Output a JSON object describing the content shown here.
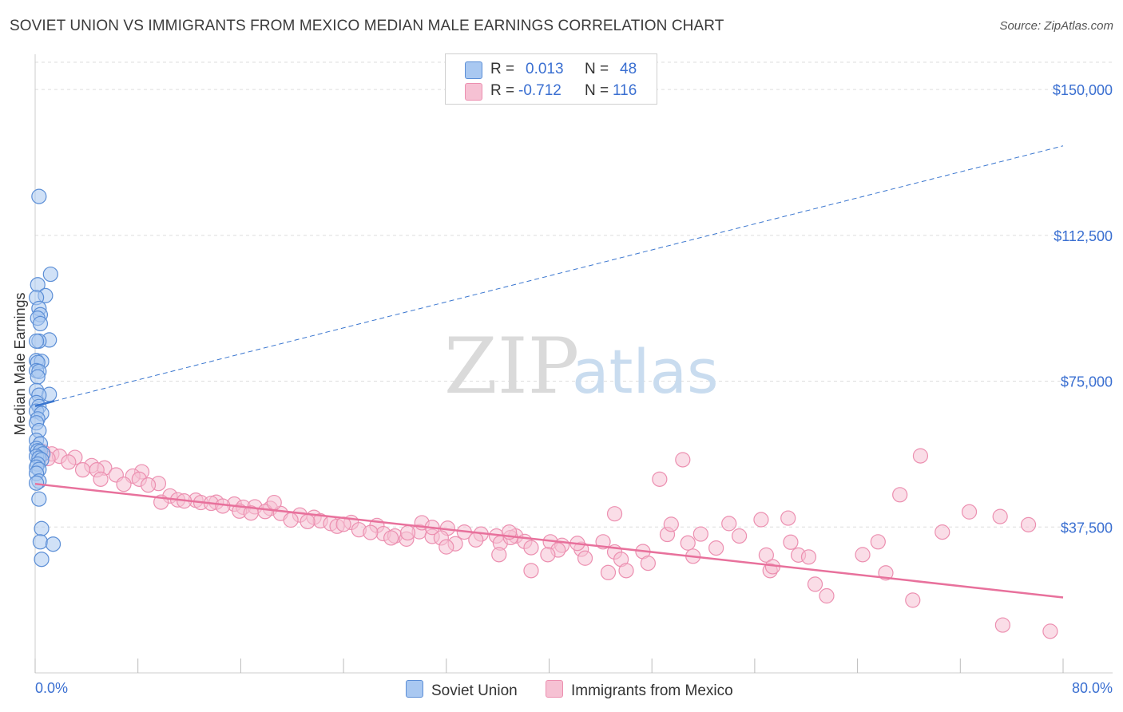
{
  "header": {
    "title": "SOVIET UNION VS IMMIGRANTS FROM MEXICO MEDIAN MALE EARNINGS CORRELATION CHART",
    "source": "Source: ZipAtlas.com"
  },
  "legend": {
    "rows": [
      {
        "r_label": "R =",
        "r_value": "0.013",
        "n_label": "N =",
        "n_value": "48"
      },
      {
        "r_label": "R =",
        "r_value": "-0.712",
        "n_label": "N =",
        "n_value": "116"
      }
    ]
  },
  "watermark": {
    "zip": "ZIP",
    "atlas": "atlas"
  },
  "colors": {
    "soviet_fill": "#a9c8f1",
    "soviet_stroke": "#5b8ed6",
    "soviet_line": "#3a76cf",
    "mexico_fill": "#f6c1d3",
    "mexico_stroke": "#ec8fb0",
    "mexico_line": "#e8719c",
    "axis_label": "#3a6fd1"
  },
  "chart_data": {
    "type": "scatter",
    "title": "SOVIET UNION VS IMMIGRANTS FROM MEXICO MEDIAN MALE EARNINGS CORRELATION CHART",
    "xlabel": "",
    "ylabel": "Median Male Earnings",
    "xlim": [
      0,
      80
    ],
    "ylim": [
      0,
      157000
    ],
    "x_tick_labels": [
      "0.0%",
      "80.0%"
    ],
    "y_ticks": [
      37500,
      75000,
      112500,
      150000
    ],
    "y_tick_labels": [
      "$37,500",
      "$75,000",
      "$112,500",
      "$150,000"
    ],
    "grid": true,
    "series": [
      {
        "name": "Soviet Union",
        "r": 0.013,
        "n": 48,
        "trend_solid": {
          "x": [
            0.0,
            1.5
          ],
          "y": [
            68600,
            69900
          ]
        },
        "trend_dashed": {
          "x": [
            1.5,
            80.0
          ],
          "y": [
            69900,
            135500
          ]
        },
        "points": [
          {
            "x": 0.3,
            "y": 122500
          },
          {
            "x": 1.2,
            "y": 102500
          },
          {
            "x": 0.2,
            "y": 99800
          },
          {
            "x": 0.8,
            "y": 97000
          },
          {
            "x": 0.1,
            "y": 96500
          },
          {
            "x": 0.3,
            "y": 93700
          },
          {
            "x": 0.4,
            "y": 92100
          },
          {
            "x": 0.2,
            "y": 91200
          },
          {
            "x": 0.4,
            "y": 89800
          },
          {
            "x": 1.1,
            "y": 85600
          },
          {
            "x": 0.3,
            "y": 85300
          },
          {
            "x": 0.1,
            "y": 85300
          },
          {
            "x": 0.1,
            "y": 80300
          },
          {
            "x": 0.5,
            "y": 80100
          },
          {
            "x": 0.2,
            "y": 79800
          },
          {
            "x": 0.1,
            "y": 77700
          },
          {
            "x": 0.3,
            "y": 77500
          },
          {
            "x": 0.2,
            "y": 76100
          },
          {
            "x": 0.1,
            "y": 72600
          },
          {
            "x": 1.1,
            "y": 71600
          },
          {
            "x": 0.3,
            "y": 71400
          },
          {
            "x": 0.1,
            "y": 69500
          },
          {
            "x": 0.3,
            "y": 68500
          },
          {
            "x": 0.1,
            "y": 67300
          },
          {
            "x": 0.5,
            "y": 66700
          },
          {
            "x": 0.2,
            "y": 65300
          },
          {
            "x": 0.1,
            "y": 64300
          },
          {
            "x": 0.3,
            "y": 62300
          },
          {
            "x": 0.1,
            "y": 59800
          },
          {
            "x": 0.4,
            "y": 58900
          },
          {
            "x": 0.1,
            "y": 57700
          },
          {
            "x": 0.2,
            "y": 57100
          },
          {
            "x": 0.4,
            "y": 56900
          },
          {
            "x": 0.6,
            "y": 56300
          },
          {
            "x": 0.1,
            "y": 55700
          },
          {
            "x": 0.3,
            "y": 55200
          },
          {
            "x": 0.5,
            "y": 54800
          },
          {
            "x": 0.2,
            "y": 53700
          },
          {
            "x": 0.1,
            "y": 52900
          },
          {
            "x": 0.3,
            "y": 52300
          },
          {
            "x": 0.1,
            "y": 51300
          },
          {
            "x": 0.3,
            "y": 49300
          },
          {
            "x": 0.1,
            "y": 48800
          },
          {
            "x": 0.3,
            "y": 44700
          },
          {
            "x": 0.5,
            "y": 37100
          },
          {
            "x": 0.4,
            "y": 33700
          },
          {
            "x": 1.4,
            "y": 33100
          },
          {
            "x": 0.5,
            "y": 29200
          }
        ]
      },
      {
        "name": "Immigrants from Mexico",
        "r": -0.712,
        "n": 116,
        "trend": {
          "x": [
            0.0,
            80.0
          ],
          "y": [
            48600,
            19400
          ]
        },
        "points": [
          {
            "x": 0.6,
            "y": 56900
          },
          {
            "x": 1.3,
            "y": 56300
          },
          {
            "x": 1.9,
            "y": 55700
          },
          {
            "x": 3.1,
            "y": 55400
          },
          {
            "x": 1.0,
            "y": 55100
          },
          {
            "x": 2.6,
            "y": 54200
          },
          {
            "x": 4.4,
            "y": 53300
          },
          {
            "x": 5.4,
            "y": 52700
          },
          {
            "x": 3.7,
            "y": 52200
          },
          {
            "x": 4.8,
            "y": 52200
          },
          {
            "x": 8.3,
            "y": 51700
          },
          {
            "x": 6.3,
            "y": 50900
          },
          {
            "x": 7.6,
            "y": 50600
          },
          {
            "x": 8.1,
            "y": 49800
          },
          {
            "x": 5.1,
            "y": 49800
          },
          {
            "x": 9.6,
            "y": 48700
          },
          {
            "x": 6.9,
            "y": 48500
          },
          {
            "x": 8.8,
            "y": 48300
          },
          {
            "x": 10.5,
            "y": 45500
          },
          {
            "x": 11.1,
            "y": 44500
          },
          {
            "x": 12.5,
            "y": 44400
          },
          {
            "x": 9.8,
            "y": 43900
          },
          {
            "x": 11.6,
            "y": 44200
          },
          {
            "x": 14.1,
            "y": 43900
          },
          {
            "x": 12.9,
            "y": 43800
          },
          {
            "x": 13.7,
            "y": 43600
          },
          {
            "x": 15.5,
            "y": 43400
          },
          {
            "x": 14.6,
            "y": 42900
          },
          {
            "x": 16.2,
            "y": 42600
          },
          {
            "x": 17.1,
            "y": 42700
          },
          {
            "x": 18.3,
            "y": 42300
          },
          {
            "x": 15.9,
            "y": 41600
          },
          {
            "x": 19.1,
            "y": 41000
          },
          {
            "x": 17.9,
            "y": 41500
          },
          {
            "x": 16.8,
            "y": 41100
          },
          {
            "x": 20.6,
            "y": 40600
          },
          {
            "x": 21.7,
            "y": 40000
          },
          {
            "x": 22.2,
            "y": 39100
          },
          {
            "x": 19.9,
            "y": 39300
          },
          {
            "x": 23.0,
            "y": 38400
          },
          {
            "x": 24.6,
            "y": 38700
          },
          {
            "x": 18.6,
            "y": 43800
          },
          {
            "x": 21.2,
            "y": 38900
          },
          {
            "x": 23.5,
            "y": 37700
          },
          {
            "x": 24.0,
            "y": 38200
          },
          {
            "x": 26.6,
            "y": 37900
          },
          {
            "x": 25.2,
            "y": 36800
          },
          {
            "x": 27.1,
            "y": 35800
          },
          {
            "x": 28.0,
            "y": 35200
          },
          {
            "x": 29.9,
            "y": 36300
          },
          {
            "x": 32.1,
            "y": 37200
          },
          {
            "x": 26.1,
            "y": 36100
          },
          {
            "x": 28.9,
            "y": 34400
          },
          {
            "x": 30.9,
            "y": 35100
          },
          {
            "x": 33.4,
            "y": 36200
          },
          {
            "x": 34.7,
            "y": 35700
          },
          {
            "x": 35.9,
            "y": 35200
          },
          {
            "x": 31.6,
            "y": 34700
          },
          {
            "x": 27.7,
            "y": 34700
          },
          {
            "x": 30.1,
            "y": 38600
          },
          {
            "x": 37.4,
            "y": 35200
          },
          {
            "x": 34.3,
            "y": 34200
          },
          {
            "x": 32.7,
            "y": 33200
          },
          {
            "x": 36.2,
            "y": 33400
          },
          {
            "x": 38.1,
            "y": 33800
          },
          {
            "x": 38.6,
            "y": 32200
          },
          {
            "x": 37.0,
            "y": 34800
          },
          {
            "x": 40.1,
            "y": 33700
          },
          {
            "x": 36.9,
            "y": 36200
          },
          {
            "x": 41.0,
            "y": 32800
          },
          {
            "x": 40.7,
            "y": 31600
          },
          {
            "x": 42.5,
            "y": 31800
          },
          {
            "x": 44.2,
            "y": 33700
          },
          {
            "x": 45.1,
            "y": 31100
          },
          {
            "x": 39.9,
            "y": 30400
          },
          {
            "x": 36.1,
            "y": 30400
          },
          {
            "x": 32.0,
            "y": 32400
          },
          {
            "x": 42.2,
            "y": 33300
          },
          {
            "x": 47.3,
            "y": 31200
          },
          {
            "x": 49.2,
            "y": 35600
          },
          {
            "x": 50.8,
            "y": 33400
          },
          {
            "x": 51.8,
            "y": 35700
          },
          {
            "x": 53.0,
            "y": 32100
          },
          {
            "x": 54.8,
            "y": 35200
          },
          {
            "x": 56.9,
            "y": 30300
          },
          {
            "x": 58.8,
            "y": 33600
          },
          {
            "x": 59.4,
            "y": 30300
          },
          {
            "x": 60.2,
            "y": 29800
          },
          {
            "x": 49.5,
            "y": 38200
          },
          {
            "x": 54.0,
            "y": 38400
          },
          {
            "x": 56.5,
            "y": 39400
          },
          {
            "x": 58.6,
            "y": 39800
          },
          {
            "x": 42.8,
            "y": 29500
          },
          {
            "x": 45.6,
            "y": 29200
          },
          {
            "x": 47.7,
            "y": 28200
          },
          {
            "x": 51.2,
            "y": 30000
          },
          {
            "x": 46.0,
            "y": 26300
          },
          {
            "x": 38.6,
            "y": 26300
          },
          {
            "x": 57.2,
            "y": 26300
          },
          {
            "x": 57.4,
            "y": 27300
          },
          {
            "x": 44.6,
            "y": 25800
          },
          {
            "x": 60.7,
            "y": 22800
          },
          {
            "x": 61.6,
            "y": 19800
          },
          {
            "x": 64.4,
            "y": 30400
          },
          {
            "x": 66.2,
            "y": 25700
          },
          {
            "x": 65.6,
            "y": 33700
          },
          {
            "x": 68.3,
            "y": 18700
          },
          {
            "x": 70.6,
            "y": 36200
          },
          {
            "x": 72.7,
            "y": 41400
          },
          {
            "x": 77.3,
            "y": 38100
          },
          {
            "x": 75.1,
            "y": 40200
          },
          {
            "x": 67.3,
            "y": 45800
          },
          {
            "x": 68.9,
            "y": 55800
          },
          {
            "x": 50.4,
            "y": 54800
          },
          {
            "x": 48.6,
            "y": 49800
          },
          {
            "x": 45.1,
            "y": 40900
          },
          {
            "x": 75.3,
            "y": 12300
          },
          {
            "x": 79.0,
            "y": 10700
          },
          {
            "x": 30.9,
            "y": 37400
          },
          {
            "x": 29.0,
            "y": 36000
          }
        ]
      }
    ]
  }
}
